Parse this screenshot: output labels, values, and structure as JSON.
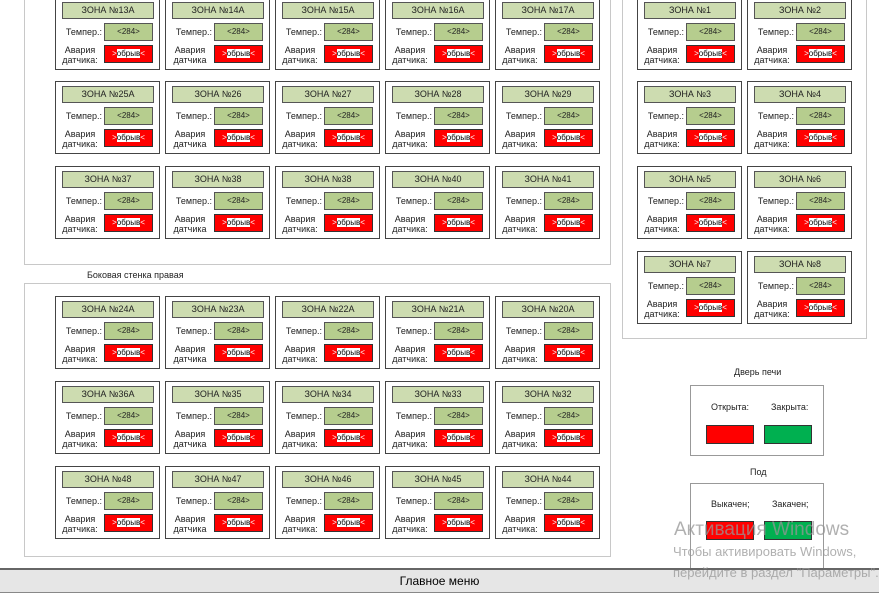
{
  "temp_label": "Темпер.:",
  "temp_value": "<284>",
  "alarm_value": "обрыв",
  "groups": [
    {
      "zones": [
        {
          "name": "ЗОНА №13А",
          "alarm_label": "Авария датчика:"
        },
        {
          "name": "ЗОНА №14А",
          "alarm_label": "Авария датчика"
        },
        {
          "name": "ЗОНА №15А",
          "alarm_label": "Авария датчика:"
        },
        {
          "name": "ЗОНА №16А",
          "alarm_label": "Авария датчика:"
        },
        {
          "name": "ЗОНА №17А",
          "alarm_label": "Авария датчика:"
        },
        {
          "name": "ЗОНА №25А",
          "alarm_label": "Авария датчика:"
        },
        {
          "name": "ЗОНА №26",
          "alarm_label": "Авария датчика"
        },
        {
          "name": "ЗОНА №27",
          "alarm_label": "Авария датчика:"
        },
        {
          "name": "ЗОНА №28",
          "alarm_label": "Авария датчика:"
        },
        {
          "name": "ЗОНА №29",
          "alarm_label": "Авария датчика:"
        },
        {
          "name": "ЗОНА №37",
          "alarm_label": "Авария датчика:"
        },
        {
          "name": "ЗОНА №38",
          "alarm_label": "Авария датчика"
        },
        {
          "name": "ЗОНА №38",
          "alarm_label": "Авария датчика:"
        },
        {
          "name": "ЗОНА №40",
          "alarm_label": "Авария датчика:"
        },
        {
          "name": "ЗОНА №41",
          "alarm_label": "Авария датчика:"
        }
      ]
    },
    {
      "title": "Боковая стенка правая",
      "zones": [
        {
          "name": "ЗОНА №24А",
          "alarm_label": "Авария датчика:"
        },
        {
          "name": "ЗОНА №23А",
          "alarm_label": "Авария датчика"
        },
        {
          "name": "ЗОНА №22А",
          "alarm_label": "Авария датчика:"
        },
        {
          "name": "ЗОНА №21А",
          "alarm_label": "Авария датчика:"
        },
        {
          "name": "ЗОНА №20А",
          "alarm_label": "Авария датчика:"
        },
        {
          "name": "ЗОНА №36А",
          "alarm_label": "Авария датчика:"
        },
        {
          "name": "ЗОНА №35",
          "alarm_label": "Авария датчика"
        },
        {
          "name": "ЗОНА №34",
          "alarm_label": "Авария датчика:"
        },
        {
          "name": "ЗОНА №33",
          "alarm_label": "Авария датчика:"
        },
        {
          "name": "ЗОНА №32",
          "alarm_label": "Авария датчика:"
        },
        {
          "name": "ЗОНА №48",
          "alarm_label": "Авария датчика:"
        },
        {
          "name": "ЗОНА №47",
          "alarm_label": "Авария датчика"
        },
        {
          "name": "ЗОНА №46",
          "alarm_label": "Авария датчика:"
        },
        {
          "name": "ЗОНА №45",
          "alarm_label": "Авария датчика:"
        },
        {
          "name": "ЗОНА №44",
          "alarm_label": "Авария датчика:"
        }
      ]
    },
    {
      "zones": [
        {
          "name": "ЗОНА №1",
          "alarm_label": "Авария датчика:"
        },
        {
          "name": "ЗОНА №2",
          "alarm_label": "Авария датчика:"
        },
        {
          "name": "ЗОНА  №3",
          "alarm_label": "Авария датчика:"
        },
        {
          "name": "ЗОНА  №4",
          "alarm_label": "Авария датчика:"
        },
        {
          "name": "ЗОНА  №5",
          "alarm_label": "Авария датчика:"
        },
        {
          "name": "ЗОНА  №6",
          "alarm_label": "Авария датчика:"
        },
        {
          "name": "ЗОНА  №7",
          "alarm_label": "Авария датчика:"
        },
        {
          "name": "ЗОНА  №8",
          "alarm_label": "Авария датчика:"
        }
      ]
    }
  ],
  "door": {
    "title": "Дверь печи",
    "open_label": "Открыта:",
    "closed_label": "Закрыта:"
  },
  "hearth": {
    "title": "Под",
    "out_label": "Выкачен;",
    "in_label": "Закачен;"
  },
  "colors": {
    "active": "#ff0000",
    "ok": "#00b050",
    "header": "#cddcb0",
    "value": "#b6cd8e"
  },
  "main_menu": "Главное меню",
  "watermark": {
    "title": "Активация Windows",
    "line1": "Чтобы активировать Windows,",
    "line2": "перейдите в раздел \"Параметры\"."
  }
}
